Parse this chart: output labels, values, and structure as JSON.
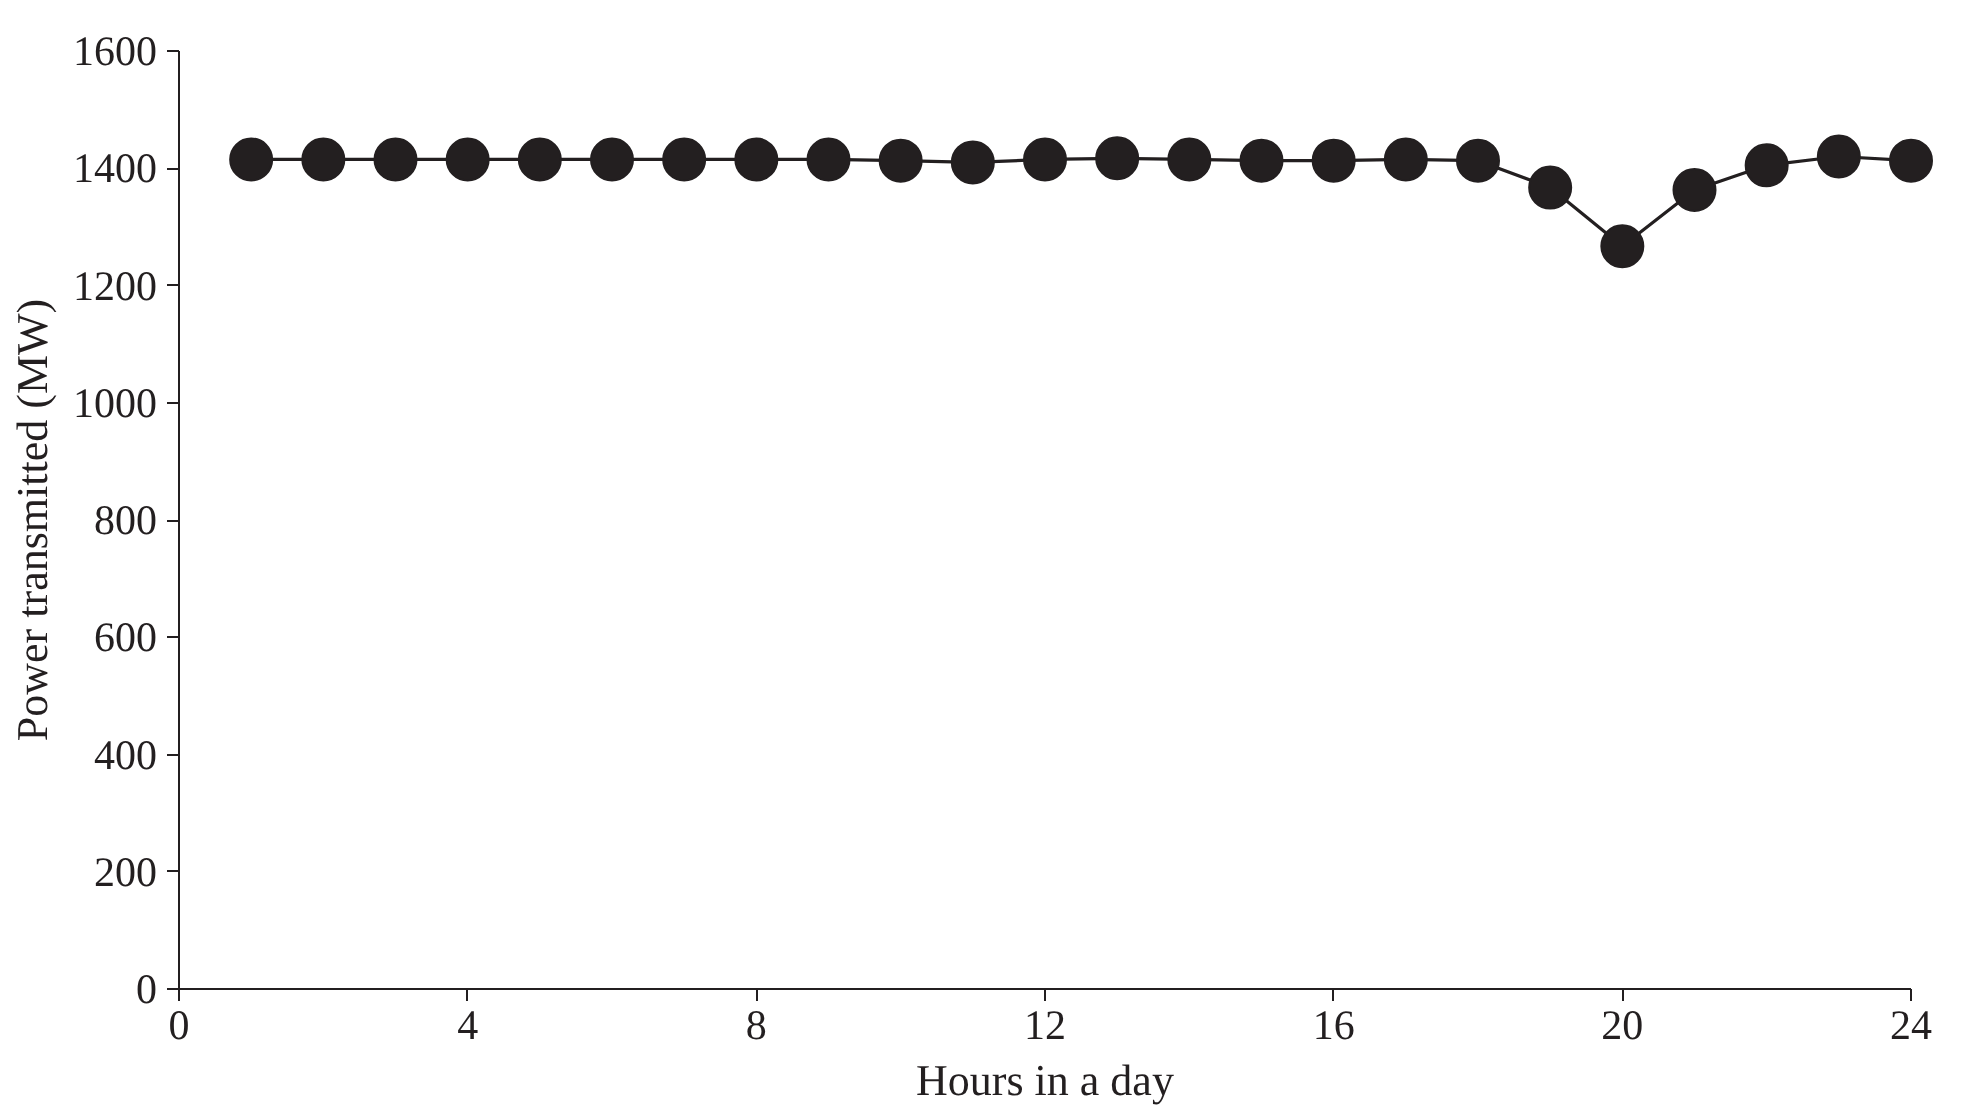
{
  "chart_data": {
    "type": "line",
    "xlabel": "Hours in a day",
    "ylabel": "Power transmitted (MW)",
    "x": [
      1,
      2,
      3,
      4,
      5,
      6,
      7,
      8,
      9,
      10,
      11,
      12,
      13,
      14,
      15,
      16,
      17,
      18,
      19,
      20,
      21,
      22,
      23,
      24
    ],
    "series": [
      {
        "color": "#231f20",
        "values": [
          1415,
          1415,
          1415,
          1415,
          1415,
          1415,
          1415,
          1415,
          1415,
          1413,
          1410,
          1415,
          1417,
          1415,
          1413,
          1413,
          1415,
          1413,
          1367,
          1267,
          1363,
          1405,
          1420,
          1413
        ]
      }
    ],
    "xlim": [
      0,
      24
    ],
    "xticks": [
      0,
      4,
      8,
      12,
      16,
      20,
      24
    ],
    "ylim": [
      0,
      1600
    ],
    "yticks": [
      0,
      200,
      400,
      600,
      800,
      1000,
      1200,
      1400,
      1600
    ],
    "marker": "circle",
    "line_style": "solid",
    "grid": false
  }
}
